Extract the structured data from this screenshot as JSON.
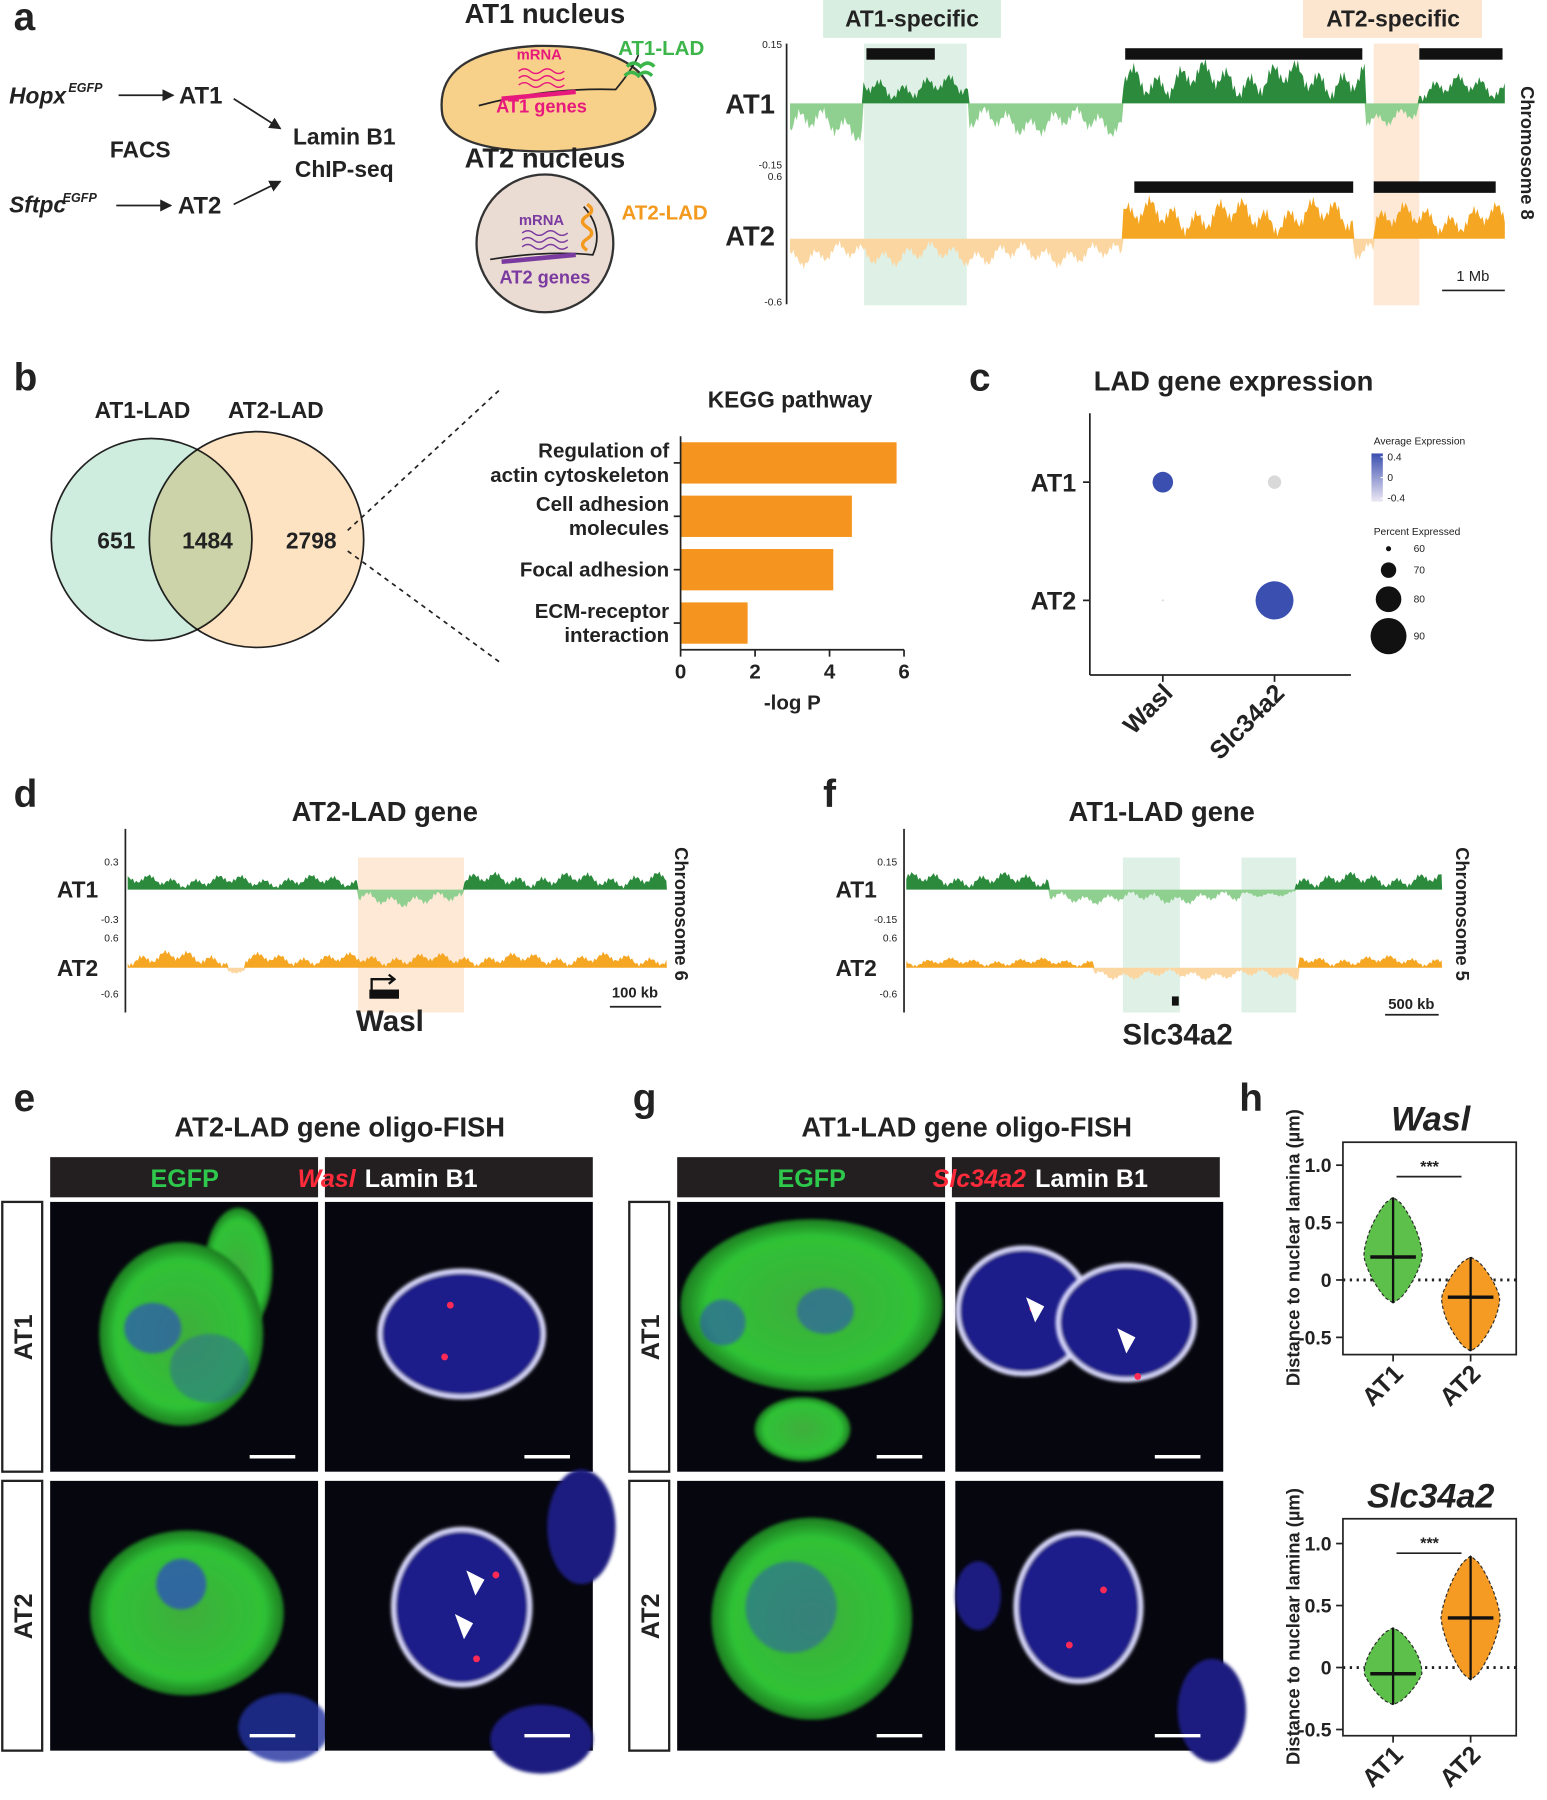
{
  "a": {
    "label": "a",
    "hopx": "Hopx",
    "hopx_sup": "EGFP",
    "at1": "AT1",
    "facs": "FACS",
    "target": [
      "Lamin B1",
      "ChIP-seq"
    ],
    "sftpc": "Sftpc",
    "sftpc_sup": "EGFP",
    "at2": "AT2",
    "at1_nucleus": {
      "title": "AT1 nucleus",
      "mrna": "mRNA",
      "lad": "AT1-LAD",
      "genes": "AT1 genes"
    },
    "at2_nucleus": {
      "title": "AT2 nucleus",
      "mrna": "mRNA",
      "lad": "AT2-LAD",
      "genes": "AT2 genes"
    },
    "tracks": {
      "specific": [
        "AT1-specific",
        "AT2-specific"
      ],
      "rows": [
        {
          "name": "AT1",
          "ticks": [
            0.15,
            -0.15
          ]
        },
        {
          "name": "AT2",
          "ticks": [
            0.6,
            -0.6
          ]
        }
      ],
      "chromosome": "Chromosome 8",
      "scale": "1 Mb"
    }
  },
  "b": {
    "label": "b",
    "venn": {
      "sets": [
        "AT1-LAD",
        "AT2-LAD"
      ],
      "counts": [
        651,
        1484,
        2798
      ]
    },
    "chart_data": {
      "type": "bar",
      "title": "KEGG pathway",
      "categories": [
        [
          "Regulation of",
          "actin cytoskeleton"
        ],
        [
          "Cell adhesion",
          "molecules"
        ],
        [
          "Focal adhesion"
        ],
        [
          "ECM-receptor",
          "interaction"
        ]
      ],
      "values": [
        5.8,
        4.6,
        4.1,
        1.8
      ],
      "color": "#f5951f",
      "orientation": "horizontal",
      "xlim": [
        0,
        6
      ],
      "xticks": [
        0,
        2,
        4,
        6
      ],
      "xlabel": "-log P"
    }
  },
  "c": {
    "label": "c",
    "chart_data": {
      "type": "dot",
      "title": "LAD gene expression",
      "categories": [
        "Wasl",
        "Slc34a2"
      ],
      "rows": [
        "AT1",
        "AT2"
      ],
      "expression": [
        [
          0.4,
          -0.4
        ],
        [
          -0.4,
          0.4
        ]
      ],
      "percent": [
        [
          75,
          68
        ],
        [
          57,
          92
        ]
      ],
      "legend": {
        "color_title": "Average Expression",
        "color_ticks": [
          0.4,
          0,
          -0.4
        ],
        "size_title": "Percent Expressed",
        "size_ticks": [
          60,
          70,
          80,
          90
        ]
      }
    }
  },
  "d": {
    "label": "d",
    "title": "AT2-LAD gene",
    "rows": [
      {
        "name": "AT1",
        "ticks": [
          0.3,
          -0.3
        ]
      },
      {
        "name": "AT2",
        "ticks": [
          0.6,
          -0.6
        ]
      }
    ],
    "chromosome": "Chromosome 6",
    "scale": "100 kb",
    "gene": "Wasl"
  },
  "f": {
    "label": "f",
    "title": "AT1-LAD gene",
    "rows": [
      {
        "name": "AT1",
        "ticks": [
          0.15,
          -0.15
        ]
      },
      {
        "name": "AT2",
        "ticks": [
          0.6,
          -0.6
        ]
      }
    ],
    "chromosome": "Chromosome 5",
    "scale": "500 kb",
    "gene": "Slc34a2"
  },
  "e": {
    "label": "e",
    "title": "AT2-LAD gene oligo-FISH",
    "channels": [
      "EGFP",
      "Lamin B1"
    ],
    "gene": "Wasl",
    "rows": [
      "AT1",
      "AT2"
    ]
  },
  "g": {
    "label": "g",
    "title": "AT1-LAD gene oligo-FISH",
    "channels": [
      "EGFP",
      "Lamin B1"
    ],
    "gene": "Slc34a2",
    "rows": [
      "AT1",
      "AT2"
    ]
  },
  "h": {
    "label": "h",
    "charts": [
      {
        "type": "violin",
        "title": "Wasl",
        "ylabel": "Distance to nuclear lamina (µm)",
        "categories": [
          "AT1",
          "AT2"
        ],
        "means": [
          0.2,
          -0.15
        ],
        "ranges": [
          [
            -0.2,
            0.72
          ],
          [
            -0.62,
            0.2
          ]
        ],
        "colors": [
          "#5cc04a",
          "#f59a23"
        ],
        "ylim": [
          -0.65,
          1.2
        ],
        "yticks": [
          {
            "value": 1,
            "label": "1.0"
          },
          0.5,
          0,
          -0.5
        ],
        "significance": "***"
      },
      {
        "type": "violin",
        "title": "Slc34a2",
        "ylabel": "Distance to nuclear lamina (µm)",
        "categories": [
          "AT1",
          "AT2"
        ],
        "means": [
          -0.05,
          0.4
        ],
        "ranges": [
          [
            -0.3,
            0.32
          ],
          [
            -0.1,
            0.9
          ]
        ],
        "colors": [
          "#5cc04a",
          "#f59a23"
        ],
        "ylim": [
          -0.55,
          1.2
        ],
        "yticks": [
          {
            "value": 1,
            "label": "1.0"
          },
          0.5,
          0,
          -0.5
        ],
        "significance": "***"
      }
    ]
  }
}
